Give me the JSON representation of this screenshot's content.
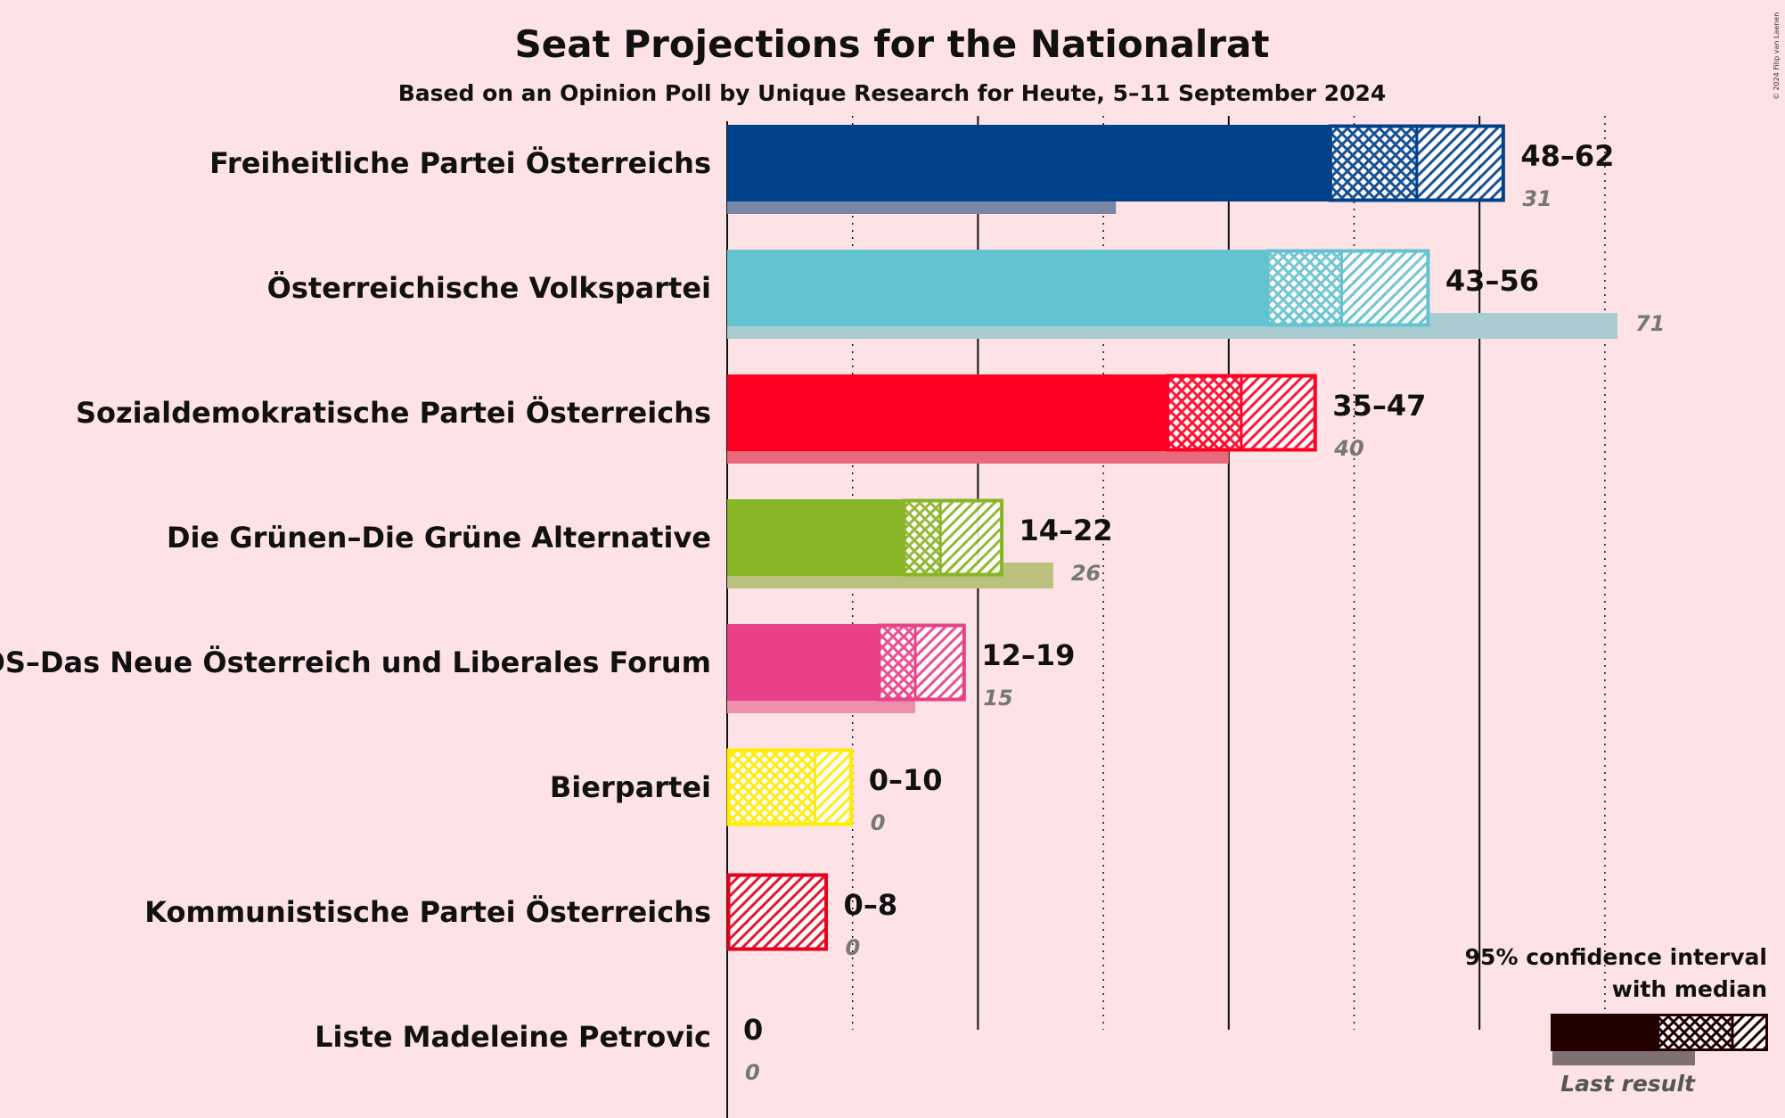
{
  "chart_data": {
    "type": "bar",
    "title": "Seat Projections for the Nationalrat",
    "subtitle": "Based on an Opinion Poll by Unique Research for Heute, 5–11 September 2024",
    "categories": [
      "Freiheitliche Partei Österreichs",
      "Österreichische Volkspartei",
      "Sozialdemokratische Partei Österreichs",
      "Die Grünen–Die Grüne Alternative",
      "NEOS–Das Neue Österreich und Liberales Forum",
      "Bierpartei",
      "Kommunistische Partei Österreichs",
      "Liste Madeleine Petrovic"
    ],
    "series": [
      {
        "name": "95% confidence interval low",
        "values": [
          48,
          43,
          35,
          14,
          12,
          0,
          0,
          0
        ]
      },
      {
        "name": "median",
        "values": [
          55,
          49,
          41,
          17,
          15,
          7,
          0,
          0
        ]
      },
      {
        "name": "95% confidence interval high",
        "values": [
          62,
          56,
          47,
          22,
          19,
          10,
          8,
          0
        ]
      },
      {
        "name": "Last result",
        "values": [
          31,
          71,
          40,
          26,
          15,
          0,
          0,
          0
        ]
      }
    ],
    "range_labels": [
      "48–62",
      "43–56",
      "35–47",
      "14–22",
      "12–19",
      "0–10",
      "0–8",
      "0"
    ],
    "last_labels": [
      "31",
      "71",
      "40",
      "26",
      "15",
      "0",
      "0",
      "0"
    ],
    "colors": [
      "#00428a",
      "#63c3d0",
      "#ff0023",
      "#88b626",
      "#e84188",
      "#ffed00",
      "#e3001b",
      "#7b2f82"
    ],
    "last_colors": [
      "#7a86a6",
      "#a8ccd2",
      "#ea6a7c",
      "#b9c17d",
      "#ee8fae",
      "#f2dd8a",
      "#e88a95",
      "#c3a5bd"
    ],
    "ylim": [
      0,
      72
    ],
    "gridlines": [
      10,
      20,
      30,
      40,
      50,
      60,
      70
    ],
    "legend": {
      "position": "bottom-right",
      "line1": "95% confidence interval",
      "line2": "with median",
      "last_result": "Last result"
    },
    "copyright": "© 2024 Filip van Laenen"
  }
}
